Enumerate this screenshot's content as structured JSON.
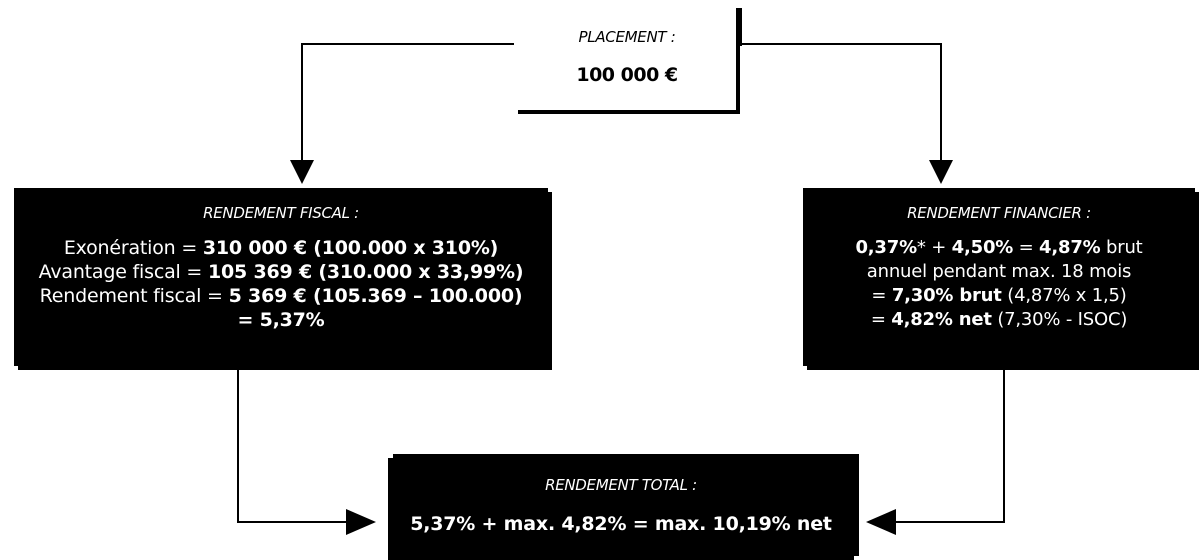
{
  "placement": {
    "heading": "PLACEMENT :",
    "amount": "100 000 €"
  },
  "fiscal": {
    "heading": "RENDEMENT FISCAL :",
    "lines": [
      {
        "label": "Exonération = ",
        "value": "310 000 € (100.000 x 310%)"
      },
      {
        "label": "Avantage fiscal = ",
        "value": "105 369 € (310.000 x 33,99%)"
      },
      {
        "label": "Rendement fiscal = ",
        "value": "5 369 € (105.369 – 100.000)"
      },
      {
        "label": "",
        "value": "= 5,37%"
      }
    ]
  },
  "financier": {
    "heading": "RENDEMENT FINANCIER :",
    "line1": {
      "bold": "0,37%",
      "text1": "* + ",
      "bold2": "4,50%",
      "text2": " = ",
      "bold3": "4,87%",
      "text3": " brut"
    },
    "line2": "annuel pendant max. 18 mois",
    "line3": {
      "text": "= ",
      "bold": "7,30% brut",
      "rest": " (4,87% x 1,5)"
    },
    "line4": {
      "text": "= ",
      "bold": "4,82% net",
      "rest": " (7,30% - ISOC)"
    }
  },
  "total": {
    "heading": "RENDEMENT TOTAL :",
    "text": "5,37% + max. 4,82% = max. 10,19% net"
  }
}
